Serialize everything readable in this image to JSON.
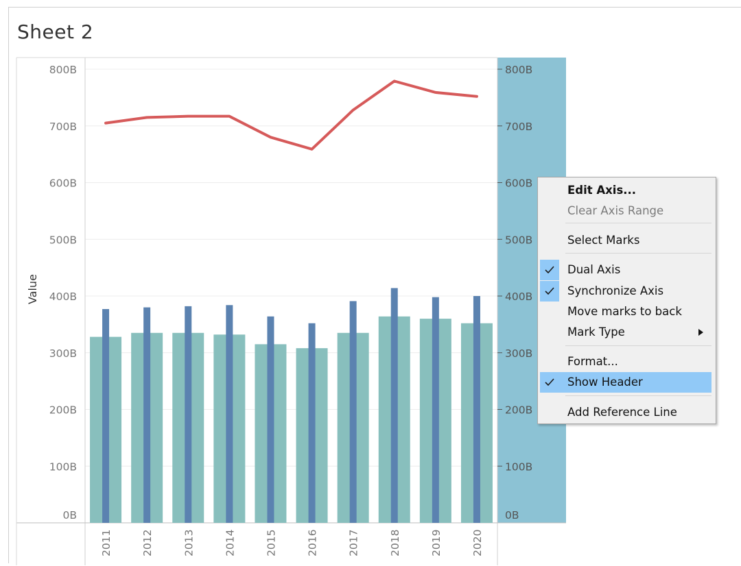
{
  "sheet": {
    "title": "Sheet 2"
  },
  "colors": {
    "bar": "#88bfbd",
    "thin_bar": "#5b82b0",
    "line": "#d65a5a",
    "axis_highlight": "#8cc2d4",
    "menu_highlight": "#91c9f7"
  },
  "chart_data": {
    "type": "bar",
    "categories": [
      "2011",
      "2012",
      "2013",
      "2014",
      "2015",
      "2016",
      "2017",
      "2018",
      "2019",
      "2020"
    ],
    "ylabel": "Value",
    "ylim": [
      0,
      800
    ],
    "y_ticks": [
      "0B",
      "100B",
      "200B",
      "300B",
      "400B",
      "500B",
      "600B",
      "700B",
      "800B"
    ],
    "right_axis_ticks": [
      "0B",
      "100B",
      "200B",
      "300B",
      "400B",
      "500B",
      "600B",
      "700B",
      "800B"
    ],
    "grid": true,
    "series": [
      {
        "mark": "bar",
        "values": [
          328,
          335,
          335,
          332,
          315,
          308,
          335,
          364,
          360,
          352
        ]
      },
      {
        "mark": "thin-bar",
        "values": [
          377,
          380,
          382,
          384,
          364,
          352,
          391,
          414,
          398,
          400
        ]
      },
      {
        "mark": "line",
        "values": [
          705,
          715,
          717,
          717,
          680,
          659,
          728,
          779,
          759,
          752
        ]
      }
    ]
  },
  "context_menu": {
    "items": [
      {
        "label": "Edit Axis...",
        "bold": true
      },
      {
        "label": "Clear Axis Range",
        "disabled": true
      },
      {
        "label": "Select Marks"
      },
      {
        "label": "Dual Axis",
        "checked": true
      },
      {
        "label": "Synchronize Axis",
        "checked": true
      },
      {
        "label": "Move marks to back"
      },
      {
        "label": "Mark Type",
        "submenu": true
      },
      {
        "label": "Format..."
      },
      {
        "label": "Show Header",
        "checked": true,
        "highlighted": true
      },
      {
        "label": "Add Reference Line"
      }
    ]
  }
}
